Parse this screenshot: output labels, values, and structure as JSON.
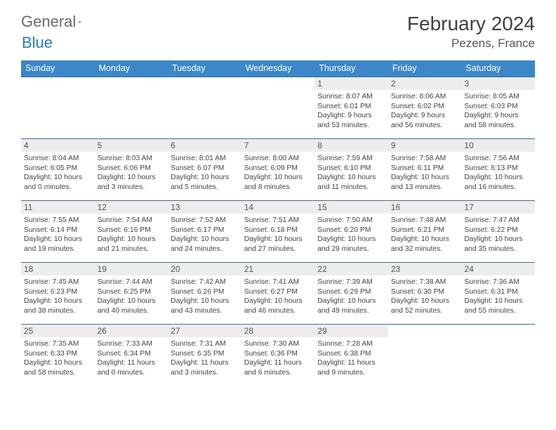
{
  "brand": {
    "text_general": "General",
    "text_blue": "Blue",
    "logo_colors": {
      "dark": "#1d4e86",
      "light": "#3b87c8"
    }
  },
  "title": "February 2024",
  "location": "Pezens, France",
  "colors": {
    "header_bg": "#3b87c8",
    "header_text": "#ffffff",
    "row_border": "#3b6fa0",
    "daynum_bg": "#ededed",
    "text": "#444444",
    "title_color": "#404040"
  },
  "day_names": [
    "Sunday",
    "Monday",
    "Tuesday",
    "Wednesday",
    "Thursday",
    "Friday",
    "Saturday"
  ],
  "weeks": [
    [
      {
        "n": "",
        "sunrise": "",
        "sunset": "",
        "daylight": ""
      },
      {
        "n": "",
        "sunrise": "",
        "sunset": "",
        "daylight": ""
      },
      {
        "n": "",
        "sunrise": "",
        "sunset": "",
        "daylight": ""
      },
      {
        "n": "",
        "sunrise": "",
        "sunset": "",
        "daylight": ""
      },
      {
        "n": "1",
        "sunrise": "Sunrise: 8:07 AM",
        "sunset": "Sunset: 6:01 PM",
        "daylight": "Daylight: 9 hours and 53 minutes."
      },
      {
        "n": "2",
        "sunrise": "Sunrise: 8:06 AM",
        "sunset": "Sunset: 6:02 PM",
        "daylight": "Daylight: 9 hours and 56 minutes."
      },
      {
        "n": "3",
        "sunrise": "Sunrise: 8:05 AM",
        "sunset": "Sunset: 6:03 PM",
        "daylight": "Daylight: 9 hours and 58 minutes."
      }
    ],
    [
      {
        "n": "4",
        "sunrise": "Sunrise: 8:04 AM",
        "sunset": "Sunset: 6:05 PM",
        "daylight": "Daylight: 10 hours and 0 minutes."
      },
      {
        "n": "5",
        "sunrise": "Sunrise: 8:03 AM",
        "sunset": "Sunset: 6:06 PM",
        "daylight": "Daylight: 10 hours and 3 minutes."
      },
      {
        "n": "6",
        "sunrise": "Sunrise: 8:01 AM",
        "sunset": "Sunset: 6:07 PM",
        "daylight": "Daylight: 10 hours and 5 minutes."
      },
      {
        "n": "7",
        "sunrise": "Sunrise: 8:00 AM",
        "sunset": "Sunset: 6:09 PM",
        "daylight": "Daylight: 10 hours and 8 minutes."
      },
      {
        "n": "8",
        "sunrise": "Sunrise: 7:59 AM",
        "sunset": "Sunset: 6:10 PM",
        "daylight": "Daylight: 10 hours and 11 minutes."
      },
      {
        "n": "9",
        "sunrise": "Sunrise: 7:58 AM",
        "sunset": "Sunset: 6:11 PM",
        "daylight": "Daylight: 10 hours and 13 minutes."
      },
      {
        "n": "10",
        "sunrise": "Sunrise: 7:56 AM",
        "sunset": "Sunset: 6:13 PM",
        "daylight": "Daylight: 10 hours and 16 minutes."
      }
    ],
    [
      {
        "n": "11",
        "sunrise": "Sunrise: 7:55 AM",
        "sunset": "Sunset: 6:14 PM",
        "daylight": "Daylight: 10 hours and 19 minutes."
      },
      {
        "n": "12",
        "sunrise": "Sunrise: 7:54 AM",
        "sunset": "Sunset: 6:16 PM",
        "daylight": "Daylight: 10 hours and 21 minutes."
      },
      {
        "n": "13",
        "sunrise": "Sunrise: 7:52 AM",
        "sunset": "Sunset: 6:17 PM",
        "daylight": "Daylight: 10 hours and 24 minutes."
      },
      {
        "n": "14",
        "sunrise": "Sunrise: 7:51 AM",
        "sunset": "Sunset: 6:18 PM",
        "daylight": "Daylight: 10 hours and 27 minutes."
      },
      {
        "n": "15",
        "sunrise": "Sunrise: 7:50 AM",
        "sunset": "Sunset: 6:20 PM",
        "daylight": "Daylight: 10 hours and 29 minutes."
      },
      {
        "n": "16",
        "sunrise": "Sunrise: 7:48 AM",
        "sunset": "Sunset: 6:21 PM",
        "daylight": "Daylight: 10 hours and 32 minutes."
      },
      {
        "n": "17",
        "sunrise": "Sunrise: 7:47 AM",
        "sunset": "Sunset: 6:22 PM",
        "daylight": "Daylight: 10 hours and 35 minutes."
      }
    ],
    [
      {
        "n": "18",
        "sunrise": "Sunrise: 7:45 AM",
        "sunset": "Sunset: 6:23 PM",
        "daylight": "Daylight: 10 hours and 38 minutes."
      },
      {
        "n": "19",
        "sunrise": "Sunrise: 7:44 AM",
        "sunset": "Sunset: 6:25 PM",
        "daylight": "Daylight: 10 hours and 40 minutes."
      },
      {
        "n": "20",
        "sunrise": "Sunrise: 7:42 AM",
        "sunset": "Sunset: 6:26 PM",
        "daylight": "Daylight: 10 hours and 43 minutes."
      },
      {
        "n": "21",
        "sunrise": "Sunrise: 7:41 AM",
        "sunset": "Sunset: 6:27 PM",
        "daylight": "Daylight: 10 hours and 46 minutes."
      },
      {
        "n": "22",
        "sunrise": "Sunrise: 7:39 AM",
        "sunset": "Sunset: 6:29 PM",
        "daylight": "Daylight: 10 hours and 49 minutes."
      },
      {
        "n": "23",
        "sunrise": "Sunrise: 7:38 AM",
        "sunset": "Sunset: 6:30 PM",
        "daylight": "Daylight: 10 hours and 52 minutes."
      },
      {
        "n": "24",
        "sunrise": "Sunrise: 7:36 AM",
        "sunset": "Sunset: 6:31 PM",
        "daylight": "Daylight: 10 hours and 55 minutes."
      }
    ],
    [
      {
        "n": "25",
        "sunrise": "Sunrise: 7:35 AM",
        "sunset": "Sunset: 6:33 PM",
        "daylight": "Daylight: 10 hours and 58 minutes."
      },
      {
        "n": "26",
        "sunrise": "Sunrise: 7:33 AM",
        "sunset": "Sunset: 6:34 PM",
        "daylight": "Daylight: 11 hours and 0 minutes."
      },
      {
        "n": "27",
        "sunrise": "Sunrise: 7:31 AM",
        "sunset": "Sunset: 6:35 PM",
        "daylight": "Daylight: 11 hours and 3 minutes."
      },
      {
        "n": "28",
        "sunrise": "Sunrise: 7:30 AM",
        "sunset": "Sunset: 6:36 PM",
        "daylight": "Daylight: 11 hours and 6 minutes."
      },
      {
        "n": "29",
        "sunrise": "Sunrise: 7:28 AM",
        "sunset": "Sunset: 6:38 PM",
        "daylight": "Daylight: 11 hours and 9 minutes."
      },
      {
        "n": "",
        "sunrise": "",
        "sunset": "",
        "daylight": ""
      },
      {
        "n": "",
        "sunrise": "",
        "sunset": "",
        "daylight": ""
      }
    ]
  ]
}
